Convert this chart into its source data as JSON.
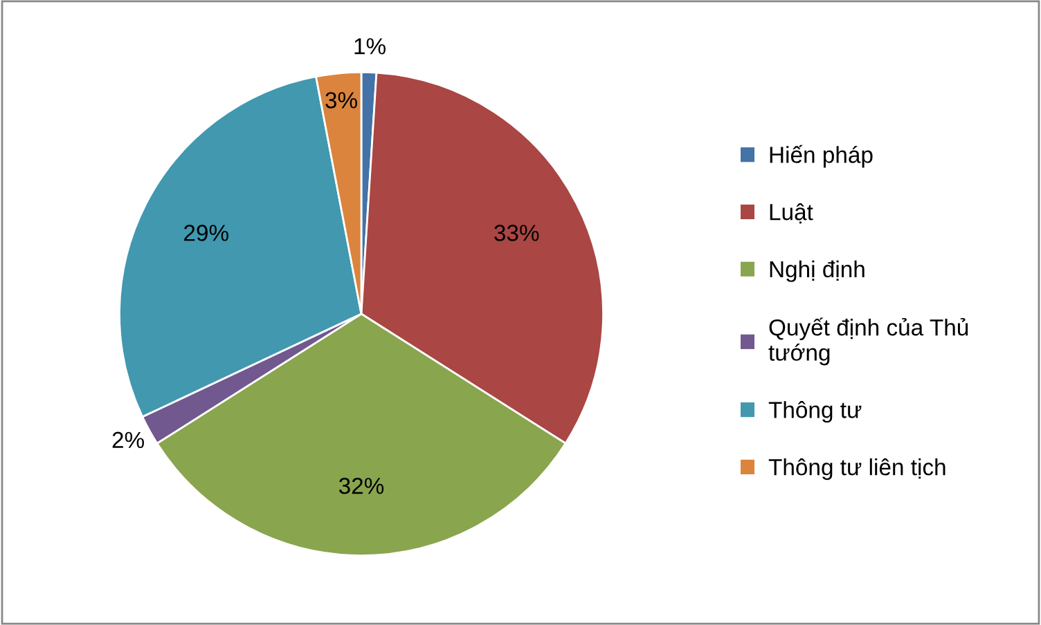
{
  "chart_data": {
    "type": "pie",
    "categories": [
      "Hiến pháp",
      "Luật",
      "Nghị định",
      "Quyết định của Thủ tướng",
      "Thông tư",
      "Thông tư liên tịch"
    ],
    "values": [
      1,
      33,
      32,
      2,
      29,
      3
    ],
    "colors": [
      "#4572a7",
      "#aa4643",
      "#89a54e",
      "#71588f",
      "#4198af",
      "#db843d"
    ],
    "value_labels": [
      "1%",
      "33%",
      "32%",
      "2%",
      "29%",
      "3%"
    ],
    "legend": "right"
  }
}
